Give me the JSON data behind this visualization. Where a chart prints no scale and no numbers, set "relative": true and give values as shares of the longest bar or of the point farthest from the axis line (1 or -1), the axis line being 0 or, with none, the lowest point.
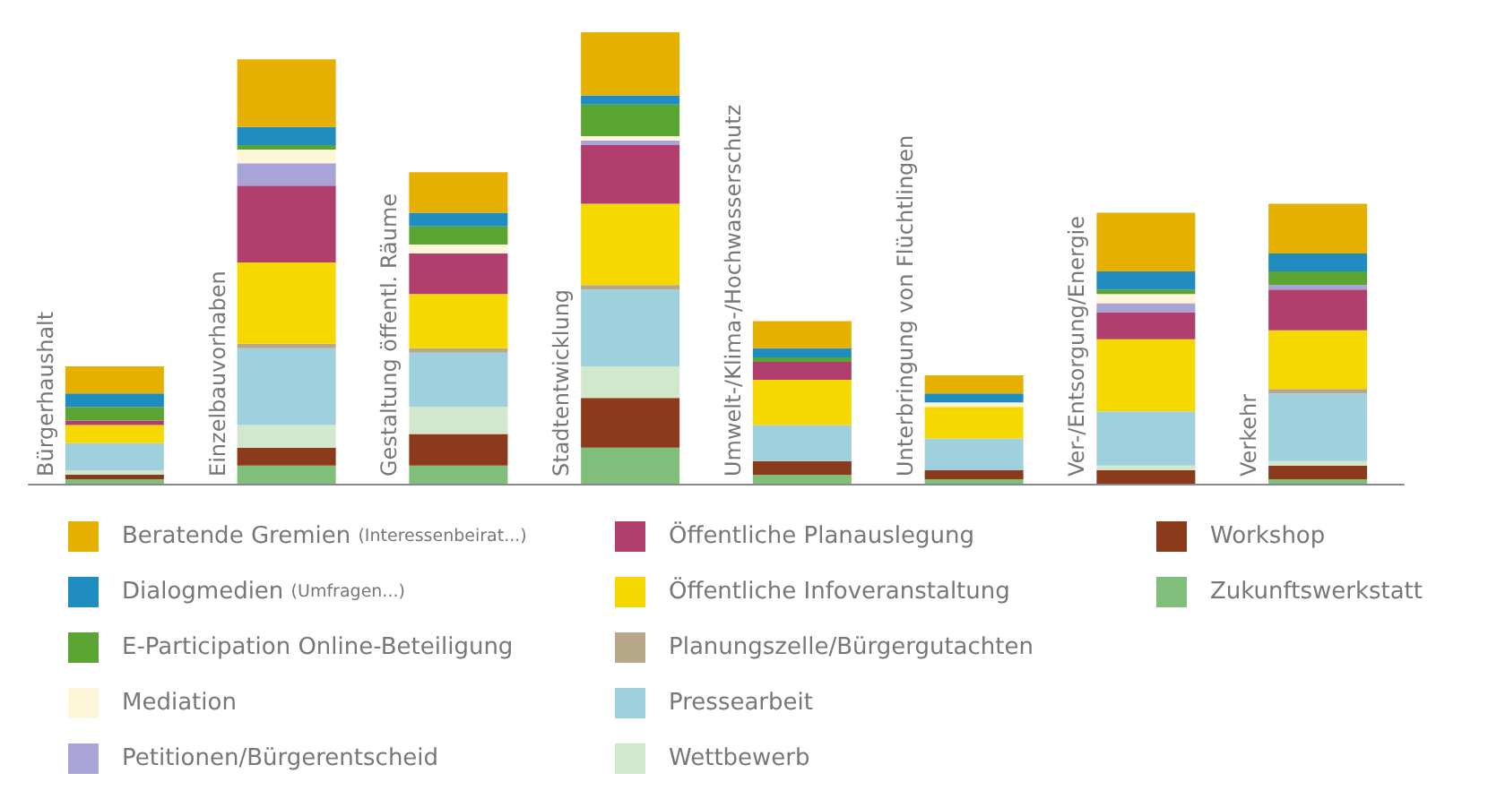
{
  "chart_data": {
    "type": "bar",
    "stacked": true,
    "relative": true,
    "legend": "bottom",
    "grid": false,
    "categories": [
      "Bürgerhaushalt",
      "Einzelbauvorhaben",
      "Gestaltung öffentl. Räume",
      "Stadtentwicklung",
      "Umwelt-/Klima-/Hochwasserschutz",
      "Unterbringung von Flüchtlingen",
      "Ver-/Entsorgung/Energie",
      "Verkehr"
    ],
    "series": [
      {
        "name": "Zukunftswerkstatt",
        "color": "#7fbf7b",
        "values": [
          0.01,
          0.04,
          0.04,
          0.08,
          0.02,
          0.01,
          0,
          0.01
        ]
      },
      {
        "name": "Workshop",
        "color": "#8c3a1c",
        "values": [
          0.01,
          0.04,
          0.07,
          0.11,
          0.03,
          0.02,
          0.03,
          0.03
        ]
      },
      {
        "name": "Wettbewerb",
        "color": "#d2e8cc",
        "values": [
          0.01,
          0.05,
          0.06,
          0.07,
          0,
          0,
          0.01,
          0.01
        ]
      },
      {
        "name": "Pressearbeit",
        "color": "#9fd0de",
        "values": [
          0.06,
          0.17,
          0.12,
          0.17,
          0.08,
          0.07,
          0.12,
          0.15
        ]
      },
      {
        "name": "Planungszelle/Bürgergutachten",
        "color": "#b8a88a",
        "values": [
          0,
          0.01,
          0.01,
          0.01,
          0,
          0,
          0,
          0.01
        ]
      },
      {
        "name": "Öffentliche Infoveranstaltung",
        "color": "#f5d800",
        "values": [
          0.04,
          0.18,
          0.12,
          0.18,
          0.1,
          0.07,
          0.16,
          0.13
        ]
      },
      {
        "name": "Öffentliche Planauslegung",
        "color": "#b03f6e",
        "values": [
          0.01,
          0.17,
          0.09,
          0.13,
          0.04,
          0,
          0.06,
          0.09
        ]
      },
      {
        "name": "Petitionen/Bürgerentscheid",
        "color": "#a8a4d8",
        "values": [
          0,
          0.05,
          0,
          0.01,
          0,
          0,
          0.02,
          0.01
        ]
      },
      {
        "name": "Mediation",
        "color": "#fdf6d8",
        "values": [
          0,
          0.03,
          0.02,
          0.01,
          0,
          0.01,
          0.02,
          0
        ]
      },
      {
        "name": "E-Participation Online-Beteiligung",
        "color": "#5aa532",
        "values": [
          0.03,
          0.01,
          0.04,
          0.07,
          0.01,
          0,
          0.01,
          0.03
        ]
      },
      {
        "name": "Dialogmedien (Umfragen...)",
        "color": "#1f8dc0",
        "values": [
          0.03,
          0.04,
          0.03,
          0.02,
          0.02,
          0.02,
          0.04,
          0.04
        ]
      },
      {
        "name": "Beratende Gremien (Interessenbeirat...)",
        "color": "#e6b000",
        "values": [
          0.06,
          0.15,
          0.09,
          0.14,
          0.06,
          0.04,
          0.13,
          0.11
        ]
      }
    ]
  }
}
